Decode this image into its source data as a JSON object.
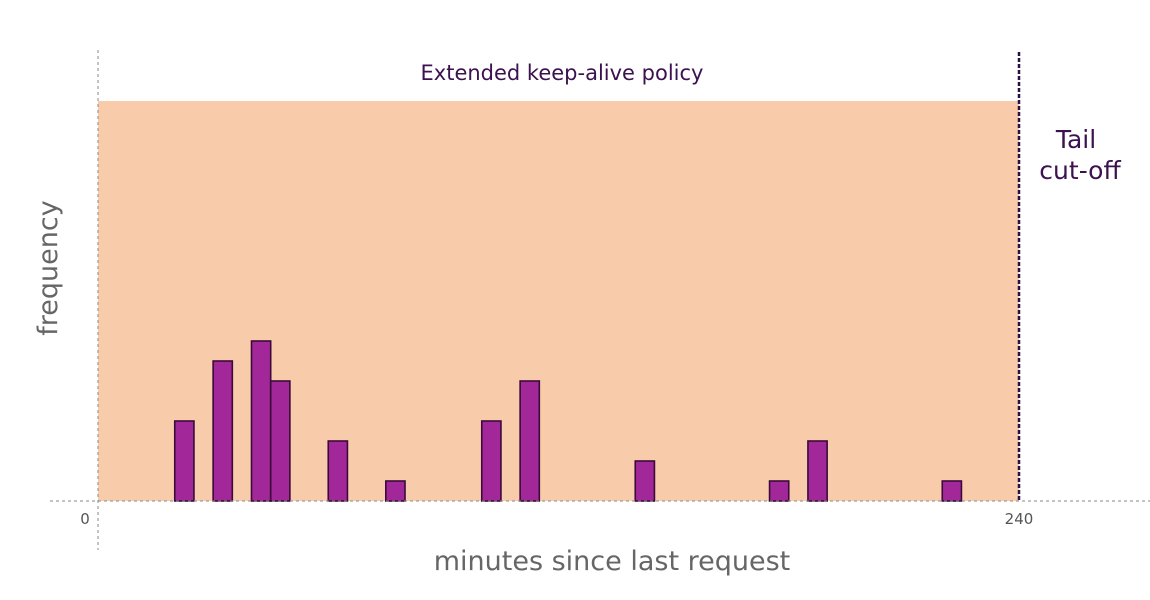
{
  "chart_data": {
    "type": "bar",
    "title": "",
    "xlabel": "minutes since last request",
    "ylabel": "frequency",
    "xlim": [
      0,
      240
    ],
    "ylim": [
      0,
      10
    ],
    "x_ticks": [
      "0",
      "240"
    ],
    "bin_width_minutes": 5,
    "region": {
      "label": "Extended keep-alive policy",
      "x_start": 0,
      "x_end": 240,
      "color": "#f8cbab"
    },
    "cutoff": {
      "x": 240,
      "label_lines": [
        "Tail",
        "cut-off"
      ],
      "color": "#2a0f45"
    },
    "bar_color": "#a2289a",
    "bar_edge_color": "#3b0a3a",
    "bins": [
      {
        "x": 22.5,
        "value": 2
      },
      {
        "x": 32.5,
        "value": 3.5
      },
      {
        "x": 42.5,
        "value": 4
      },
      {
        "x": 47.5,
        "value": 3
      },
      {
        "x": 62.5,
        "value": 1.5
      },
      {
        "x": 77.5,
        "value": 0.5
      },
      {
        "x": 102.5,
        "value": 2
      },
      {
        "x": 112.5,
        "value": 3
      },
      {
        "x": 142.5,
        "value": 1
      },
      {
        "x": 177.5,
        "value": 0.5
      },
      {
        "x": 187.5,
        "value": 1.5
      },
      {
        "x": 222.5,
        "value": 0.5
      }
    ]
  }
}
